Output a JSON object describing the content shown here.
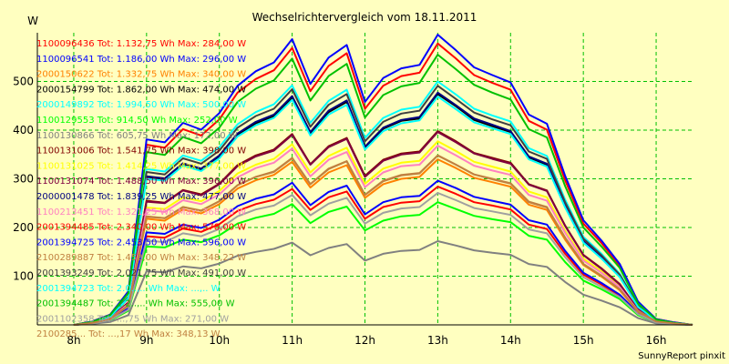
{
  "chart_data": {
    "type": "line",
    "title": "Wechselrichtervergleich vom 18.11.2011",
    "ylabel": "W",
    "footer": "SunnyReport pinxit",
    "xlim": [
      7.5,
      16.5
    ],
    "ylim": [
      0,
      600
    ],
    "x_ticks": [
      {
        "value": 8,
        "label": "8h"
      },
      {
        "value": 9,
        "label": "9h"
      },
      {
        "value": 10,
        "label": "10h"
      },
      {
        "value": 11,
        "label": "11h"
      },
      {
        "value": 12,
        "label": "12h"
      },
      {
        "value": 13,
        "label": "13h"
      },
      {
        "value": 14,
        "label": "14h"
      },
      {
        "value": 15,
        "label": "15h"
      },
      {
        "value": 16,
        "label": "16h"
      }
    ],
    "y_ticks": [
      100,
      200,
      300,
      400,
      500
    ],
    "grid": true,
    "x": [
      8.0,
      8.25,
      8.5,
      8.75,
      9.0,
      9.25,
      9.5,
      9.75,
      10.0,
      10.25,
      10.5,
      10.75,
      11.0,
      11.25,
      11.5,
      11.75,
      12.0,
      12.25,
      12.5,
      12.75,
      13.0,
      13.25,
      13.5,
      13.75,
      14.0,
      14.25,
      14.5,
      14.75,
      15.0,
      15.25,
      15.5,
      15.75,
      16.0,
      16.25,
      16.5
    ],
    "series": [
      {
        "name": "1100096436 Tot: 1.132,75 Wh Max: 284,00 W",
        "color": "#ff0000",
        "values": [
          0,
          3,
          10,
          33,
          182,
          179,
          198,
          191,
          207,
          234,
          248,
          257,
          279,
          236,
          262,
          274,
          218,
          242,
          251,
          254,
          284,
          269,
          252,
          245,
          237,
          206,
          197,
          146,
          103,
          83,
          60,
          23,
          6,
          2,
          0
        ]
      },
      {
        "name": "1100096541 Tot: 1.186,00 Wh Max: 296,00 W",
        "color": "#0000ff",
        "values": [
          0,
          3,
          10,
          34,
          190,
          187,
          206,
          199,
          216,
          244,
          259,
          268,
          292,
          246,
          273,
          286,
          227,
          252,
          262,
          265,
          296,
          281,
          263,
          255,
          247,
          215,
          206,
          152,
          107,
          86,
          62,
          24,
          6,
          2,
          0
        ]
      },
      {
        "name": "2000150622 Tot: 1.332,75 Wh Max: 340,00 W",
        "color": "#ff8000",
        "values": [
          0,
          4,
          12,
          39,
          218,
          214,
          237,
          229,
          248,
          280,
          297,
          308,
          335,
          282,
          313,
          328,
          261,
          289,
          300,
          304,
          340,
          322,
          302,
          293,
          284,
          247,
          236,
          175,
          123,
          99,
          71,
          27,
          7,
          3,
          0
        ]
      },
      {
        "name": "2000154799 Tot: 1.862,00 Wh Max: 474,00 W",
        "color": "#000000",
        "values": [
          0,
          5,
          17,
          55,
          304,
          299,
          330,
          319,
          346,
          391,
          414,
          429,
          467,
          393,
          437,
          458,
          364,
          403,
          419,
          424,
          474,
          449,
          421,
          408,
          396,
          344,
          329,
          243,
          171,
          138,
          100,
          38,
          9,
          4,
          0
        ]
      },
      {
        "name": "2000149892 Tot: 1.994,50 Wh Max: 500,00 W",
        "color": "#00ffff",
        "values": [
          0,
          6,
          18,
          58,
          320,
          315,
          348,
          337,
          365,
          412,
          437,
          453,
          492,
          415,
          460,
          483,
          384,
          425,
          442,
          448,
          500,
          473,
          444,
          430,
          418,
          363,
          347,
          257,
          181,
          146,
          105,
          40,
          10,
          4,
          0
        ]
      },
      {
        "name": "1100129553 Tot: 914,50 Wh Max: 252,00 W",
        "color": "#00ff00",
        "values": [
          0,
          3,
          9,
          29,
          161,
          159,
          175,
          170,
          184,
          208,
          220,
          228,
          248,
          209,
          232,
          243,
          194,
          214,
          223,
          226,
          252,
          238,
          224,
          217,
          211,
          183,
          175,
          129,
          91,
          73,
          53,
          20,
          5,
          2,
          0
        ]
      },
      {
        "name": "1100130866 Tot: 605,75 Wh Max: 172,00 W",
        "color": "#808080",
        "values": [
          0,
          2,
          6,
          20,
          110,
          108,
          120,
          116,
          126,
          142,
          150,
          156,
          169,
          143,
          158,
          166,
          132,
          146,
          152,
          154,
          172,
          163,
          153,
          148,
          144,
          125,
          119,
          88,
          62,
          50,
          36,
          14,
          3,
          1,
          0
        ]
      },
      {
        "name": "1100131006 Tot: 1.541,75 Wh Max: 398,00 W",
        "color": "#800000",
        "values": [
          0,
          4,
          14,
          46,
          255,
          251,
          277,
          268,
          290,
          328,
          348,
          360,
          392,
          330,
          367,
          384,
          306,
          339,
          352,
          356,
          398,
          377,
          353,
          343,
          333,
          289,
          276,
          204,
          144,
          116,
          84,
          32,
          8,
          3,
          0
        ]
      },
      {
        "name": "1100131025 Tot: 1.414,25 Wh Max: 377,00 W",
        "color": "#ffff00",
        "values": [
          0,
          4,
          13,
          44,
          241,
          238,
          262,
          254,
          275,
          311,
          329,
          341,
          371,
          313,
          347,
          364,
          290,
          321,
          333,
          337,
          377,
          357,
          335,
          325,
          315,
          274,
          262,
          193,
          136,
          110,
          79,
          30,
          8,
          3,
          0
        ]
      },
      {
        "name": "1100131074 Tot: 1.488,50 Wh Max: 396,00 W",
        "color": "#800040",
        "values": [
          0,
          4,
          14,
          46,
          253,
          250,
          276,
          266,
          289,
          326,
          346,
          358,
          390,
          329,
          365,
          382,
          304,
          337,
          350,
          354,
          396,
          375,
          352,
          341,
          331,
          288,
          275,
          203,
          143,
          115,
          83,
          32,
          8,
          3,
          0
        ]
      },
      {
        "name": "2000001478 Tot: 1.839,25 Wh Max: 477,00 W",
        "color": "#000080",
        "values": [
          0,
          6,
          17,
          55,
          305,
          301,
          332,
          321,
          348,
          393,
          417,
          432,
          470,
          396,
          440,
          461,
          366,
          405,
          421,
          427,
          477,
          451,
          424,
          411,
          398,
          346,
          331,
          245,
          172,
          139,
          100,
          38,
          10,
          4,
          0
        ]
      },
      {
        "name": "1100213451 Tot: 1.321,25 Wh Max: 368,00 W",
        "color": "#ff80c0",
        "values": [
          0,
          4,
          13,
          43,
          236,
          232,
          256,
          248,
          268,
          303,
          322,
          333,
          362,
          305,
          339,
          355,
          283,
          313,
          326,
          329,
          368,
          348,
          327,
          317,
          308,
          267,
          255,
          189,
          132,
          107,
          77,
          29,
          7,
          3,
          0
        ]
      },
      {
        "name": "2001394485 Tot: 2.340,00 Wh Max: 578,00 W",
        "color": "#ff0000",
        "values": [
          0,
          7,
          21,
          67,
          370,
          364,
          402,
          389,
          422,
          477,
          505,
          523,
          569,
          480,
          532,
          558,
          444,
          491,
          511,
          518,
          578,
          547,
          513,
          497,
          483,
          419,
          401,
          297,
          208,
          168,
          121,
          46,
          12,
          5,
          0
        ]
      },
      {
        "name": "2001394725 Tot: 2.453,50 Wh Max: 596,00 W",
        "color": "#0000ff",
        "values": [
          0,
          7,
          21,
          69,
          381,
          375,
          415,
          401,
          435,
          491,
          521,
          539,
          587,
          495,
          549,
          575,
          458,
          507,
          527,
          534,
          596,
          564,
          529,
          513,
          498,
          432,
          413,
          306,
          215,
          173,
          125,
          48,
          12,
          5,
          0
        ]
      },
      {
        "name": "2100289887 Tot: 1.452,00 Wh Max: 348,22 W",
        "color": "#c08040",
        "values": [
          0,
          4,
          13,
          40,
          223,
          219,
          242,
          235,
          254,
          287,
          304,
          315,
          343,
          289,
          321,
          336,
          267,
          296,
          308,
          312,
          348,
          329,
          309,
          300,
          291,
          253,
          242,
          179,
          125,
          101,
          73,
          28,
          7,
          3,
          0
        ]
      },
      {
        "name": "2001393249 Tot: 2.021,75 Wh Max: 491,00 W",
        "color": "#404040",
        "values": [
          0,
          6,
          18,
          57,
          314,
          309,
          342,
          331,
          358,
          405,
          429,
          444,
          484,
          407,
          452,
          474,
          377,
          417,
          434,
          440,
          491,
          464,
          436,
          422,
          410,
          356,
          341,
          252,
          177,
          143,
          103,
          39,
          10,
          4,
          0
        ]
      },
      {
        "name": "2001394723 Tot: 2.0..,.. Wh Max: ...,.. W",
        "color": "#00ffff",
        "values": [
          0,
          6,
          17,
          55,
          300,
          296,
          327,
          316,
          342,
          387,
          410,
          425,
          462,
          389,
          432,
          452,
          360,
          398,
          414,
          420,
          469,
          443,
          416,
          404,
          392,
          340,
          325,
          241,
          169,
          136,
          98,
          37,
          9,
          4,
          0
        ]
      },
      {
        "name": "2001394487 Tot: 2.2..,.. Wh Max: 555,00 W",
        "color": "#00c000",
        "values": [
          0,
          6,
          20,
          65,
          355,
          349,
          386,
          373,
          405,
          458,
          485,
          502,
          547,
          461,
          511,
          536,
          426,
          472,
          490,
          497,
          555,
          525,
          493,
          477,
          463,
          402,
          385,
          285,
          200,
          161,
          117,
          44,
          11,
          4,
          0
        ]
      },
      {
        "name": "2001102358 Tot: ...,75 Wh Max: 271,00 W",
        "color": "#a0a0a0",
        "values": [
          0,
          3,
          10,
          31,
          173,
          170,
          188,
          182,
          197,
          223,
          237,
          245,
          267,
          225,
          249,
          261,
          208,
          230,
          239,
          242,
          271,
          256,
          240,
          233,
          226,
          196,
          188,
          139,
          98,
          78,
          57,
          22,
          5,
          2,
          0
        ]
      },
      {
        "name": "2100285... Tot: ...,17 Wh Max: 348,13 W",
        "color": "#c08040",
        "values": [
          0,
          4,
          12,
          40,
          222,
          219,
          242,
          234,
          254,
          287,
          304,
          314,
          342,
          289,
          320,
          336,
          267,
          295,
          307,
          311,
          348,
          329,
          309,
          299,
          290,
          252,
          241,
          179,
          125,
          101,
          73,
          28,
          7,
          3,
          0
        ]
      }
    ]
  }
}
